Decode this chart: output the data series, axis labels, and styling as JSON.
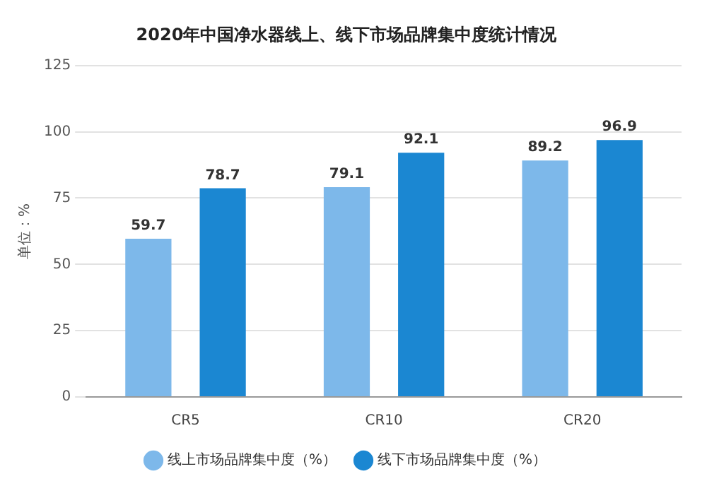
{
  "chart_data": {
    "type": "bar",
    "title": "2020年中国净水器线上、线下市场品牌集中度统计情况",
    "ylabel": "单位：%",
    "categories": [
      "CR5",
      "CR10",
      "CR20"
    ],
    "series": [
      {
        "name": "线上市场品牌集中度（%）",
        "color": "#7db8ea",
        "values": [
          59.7,
          79.1,
          89.2
        ]
      },
      {
        "name": "线下市场品牌集中度（%）",
        "color": "#1b87d2",
        "values": [
          78.7,
          92.1,
          96.9
        ]
      }
    ],
    "ylim": [
      0,
      125
    ],
    "yticks": [
      0,
      25,
      50,
      75,
      100,
      125
    ],
    "grid": "y",
    "legend": "bottom",
    "data_labels": true
  }
}
